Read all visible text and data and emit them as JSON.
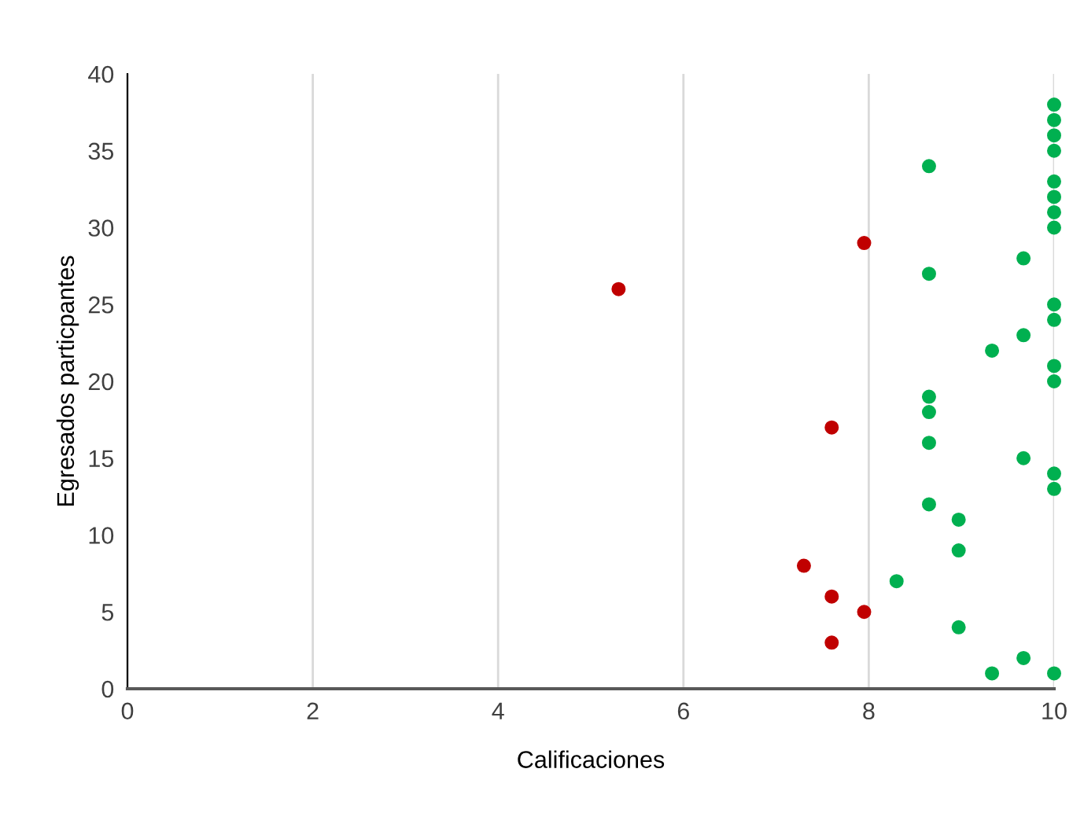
{
  "chart_data": {
    "type": "scatter",
    "xlabel": "Calificaciones",
    "ylabel": "Egresados particpantes",
    "series": [
      {
        "color": "#c00000",
        "x": [
          5.3,
          7.95,
          7.6,
          7.3,
          7.6,
          7.95,
          7.6
        ],
        "values": [
          26,
          29,
          17,
          8,
          6,
          5,
          3
        ]
      },
      {
        "color": "#00b050",
        "x": [
          10,
          10,
          10,
          10,
          8.65,
          10,
          10,
          10,
          10,
          9.67,
          8.65,
          10,
          10,
          9.67,
          9.33,
          10,
          10,
          8.65,
          8.65,
          8.65,
          9.67,
          10,
          10,
          8.65,
          8.97,
          8.97,
          8.3,
          8.97,
          9.67,
          9.33,
          10
        ],
        "values": [
          38,
          37,
          36,
          35,
          34,
          33,
          32,
          31,
          30,
          28,
          27,
          25,
          24,
          23,
          22,
          21,
          20,
          19,
          18,
          16,
          15,
          14,
          13,
          12,
          11,
          9,
          7,
          4,
          2,
          1,
          1
        ]
      }
    ],
    "xlim": [
      0,
      10
    ],
    "xticks": [
      0,
      2,
      4,
      6,
      8,
      10
    ],
    "ylim": [
      0,
      40
    ],
    "yticks": [
      0,
      5,
      10,
      15,
      20,
      25,
      30,
      35,
      40
    ],
    "grid": "x",
    "marker": "circle",
    "legend": false
  }
}
